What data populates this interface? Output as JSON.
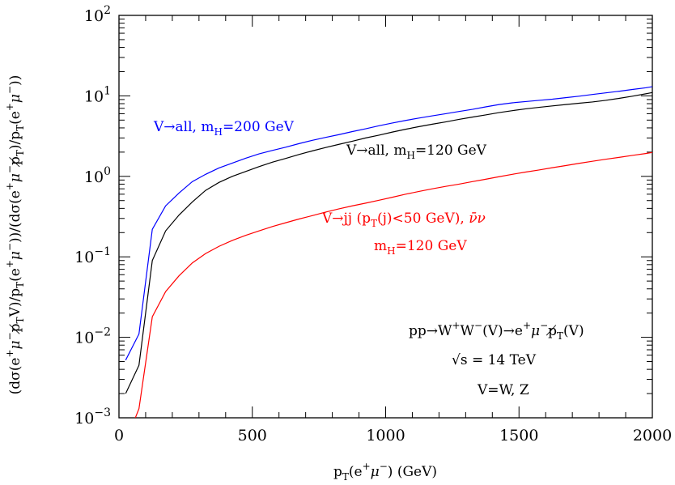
{
  "chart_data": {
    "type": "line",
    "title": "",
    "xlabel": "p_T(e^+μ^-) (GeV)",
    "ylabel": "(dσ(e^+μ^-p̸_T V)/p_T(e^+μ^-))/(dσ(e^+μ^-p̸_T)/p_T(e^+μ^-))",
    "xlim": [
      0,
      2000
    ],
    "ylim": [
      0.001,
      100
    ],
    "yscale": "log",
    "x_ticks": [
      "0",
      "500",
      "1000",
      "1500",
      "2000"
    ],
    "y_ticks": [
      {
        "base": "10",
        "exp": "−3"
      },
      {
        "base": "10",
        "exp": "−2"
      },
      {
        "base": "10",
        "exp": "−1"
      },
      {
        "base": "10",
        "exp": "0"
      },
      {
        "base": "10",
        "exp": "1"
      },
      {
        "base": "10",
        "exp": "2"
      }
    ],
    "grid": false,
    "series": [
      {
        "name": "V→all, m_H=200 GeV",
        "color": "#0000ff",
        "x": [
          25,
          75,
          125,
          175,
          225,
          275,
          325,
          375,
          425,
          475,
          525,
          575,
          625,
          675,
          725,
          775,
          825,
          875,
          925,
          975,
          1025,
          1075,
          1125,
          1175,
          1225,
          1275,
          1325,
          1375,
          1425,
          1475,
          1525,
          1575,
          1625,
          1675,
          1725,
          1775,
          1825,
          1875,
          1925,
          1975,
          2000
        ],
        "y": [
          0.0052,
          0.011,
          0.22,
          0.43,
          0.62,
          0.86,
          1.06,
          1.27,
          1.46,
          1.68,
          1.9,
          2.1,
          2.3,
          2.55,
          2.8,
          3.05,
          3.3,
          3.6,
          3.9,
          4.25,
          4.6,
          4.95,
          5.3,
          5.65,
          6.0,
          6.4,
          6.8,
          7.3,
          7.8,
          8.2,
          8.5,
          8.8,
          9.1,
          9.5,
          9.9,
          10.4,
          10.9,
          11.4,
          12.0,
          12.6,
          13.0
        ]
      },
      {
        "name": "V→all, m_H=120 GeV",
        "color": "#000000",
        "x": [
          25,
          75,
          125,
          175,
          225,
          275,
          325,
          375,
          425,
          475,
          525,
          575,
          625,
          675,
          725,
          775,
          825,
          875,
          925,
          975,
          1025,
          1075,
          1125,
          1175,
          1225,
          1275,
          1325,
          1375,
          1425,
          1475,
          1525,
          1575,
          1625,
          1675,
          1725,
          1775,
          1825,
          1875,
          1925,
          1975,
          2000
        ],
        "y": [
          0.002,
          0.0045,
          0.09,
          0.21,
          0.33,
          0.48,
          0.67,
          0.84,
          1.0,
          1.15,
          1.32,
          1.5,
          1.67,
          1.87,
          2.07,
          2.28,
          2.5,
          2.73,
          3.0,
          3.25,
          3.55,
          3.85,
          4.15,
          4.45,
          4.75,
          5.1,
          5.45,
          5.8,
          6.2,
          6.55,
          6.9,
          7.2,
          7.5,
          7.8,
          8.1,
          8.4,
          8.8,
          9.3,
          9.9,
          10.6,
          11.0
        ]
      },
      {
        "name": "V→jj (p_T(j)<50 GeV), ν̄ν m_H=120 GeV",
        "color": "#ff0000",
        "x": [
          50,
          75,
          125,
          175,
          225,
          275,
          325,
          375,
          425,
          475,
          525,
          575,
          625,
          675,
          725,
          775,
          825,
          875,
          925,
          975,
          1025,
          1075,
          1125,
          1175,
          1225,
          1275,
          1325,
          1375,
          1425,
          1475,
          1525,
          1575,
          1625,
          1675,
          1725,
          1775,
          1825,
          1875,
          1925,
          1975,
          2000
        ],
        "y": [
          0.0008,
          0.0013,
          0.018,
          0.037,
          0.058,
          0.084,
          0.11,
          0.135,
          0.16,
          0.185,
          0.21,
          0.238,
          0.265,
          0.295,
          0.325,
          0.36,
          0.395,
          0.43,
          0.465,
          0.505,
          0.55,
          0.6,
          0.65,
          0.7,
          0.75,
          0.8,
          0.86,
          0.92,
          0.99,
          1.06,
          1.13,
          1.2,
          1.28,
          1.36,
          1.45,
          1.54,
          1.63,
          1.72,
          1.82,
          1.92,
          1.98
        ]
      }
    ],
    "annotations": {
      "blue_label": {
        "main": "V→all,  m",
        "sub": "H",
        "rest": "=200  GeV"
      },
      "black_label": {
        "main": "V→all,  m",
        "sub": "H",
        "rest": "=120  GeV"
      },
      "red_label_1": "V→jj  (p",
      "red_label_1_sub": "T",
      "red_label_1_rest": "(j)<50  GeV),  ",
      "red_label_1_nu": "ν̄ν",
      "red_label_2": {
        "main": "m",
        "sub": "H",
        "rest": "=120  GeV"
      },
      "process": "pp→W",
      "process_sup1": "+",
      "process_mid": "W",
      "process_sup2": "−",
      "process_rest": "(V)→e",
      "process_sup3": "+",
      "process_mu": "μ",
      "process_sup4": "−",
      "process_pt": "p̸",
      "process_pt_sub": "T",
      "process_end": "(V)",
      "energy": "√s  =  14  TeV",
      "vdef": "V=W,  Z"
    }
  }
}
